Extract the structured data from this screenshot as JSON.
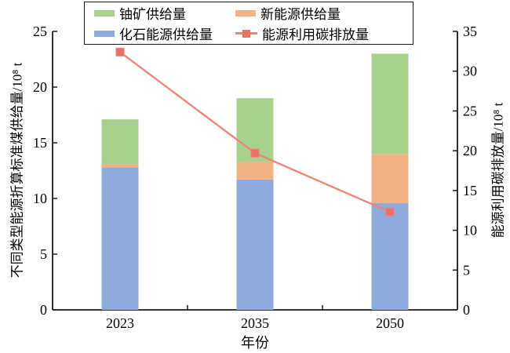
{
  "legend": {
    "items": [
      {
        "label": "铀矿供给量",
        "color": "#a9d18e",
        "type": "box"
      },
      {
        "label": "新能源供给量",
        "color": "#f4b183",
        "type": "box"
      },
      {
        "label": "化石能源供给量",
        "color": "#8faadc",
        "type": "box"
      },
      {
        "label": "能源利用碳排放量",
        "color": "#ee8375",
        "marker_color": "#eb7263",
        "type": "line"
      }
    ]
  },
  "chart_data": {
    "type": "bar",
    "subtype": "stacked-bars-with-line",
    "categories": [
      "2023",
      "2035",
      "2050"
    ],
    "series": [
      {
        "name": "化石能源供给量",
        "type": "bar",
        "axis": "left",
        "color": "#8faadc",
        "values": [
          12.8,
          11.7,
          9.6
        ]
      },
      {
        "name": "新能源供给量",
        "type": "bar",
        "axis": "left",
        "color": "#f4b183",
        "values": [
          0.3,
          1.6,
          4.4
        ]
      },
      {
        "name": "铀矿供给量",
        "type": "bar",
        "axis": "left",
        "color": "#a9d18e",
        "values": [
          4.0,
          5.7,
          9.0
        ]
      },
      {
        "name": "能源利用碳排放量",
        "type": "line",
        "axis": "right",
        "color": "#ee8375",
        "marker_color": "#eb7263",
        "values": [
          32.4,
          19.7,
          12.3
        ]
      }
    ],
    "bar_totals": [
      17.1,
      19.0,
      23.0
    ],
    "title": "",
    "xlabel": "年份",
    "ylabel_left": "不同类型能源折算标准煤供给量/10⁸ t",
    "ylabel_right": "能源利用碳排放量/10⁸ t",
    "ylim_left": [
      0,
      25
    ],
    "ylim_right": [
      0,
      35
    ],
    "yticks_left": [
      0,
      5,
      10,
      15,
      20,
      25
    ],
    "yticks_right": [
      0,
      5,
      10,
      15,
      20,
      25,
      30,
      35
    ],
    "grid": false,
    "legend_position": "top-center"
  },
  "style": {
    "axis_color": "#1a1a1a",
    "background": "#ffffff"
  }
}
